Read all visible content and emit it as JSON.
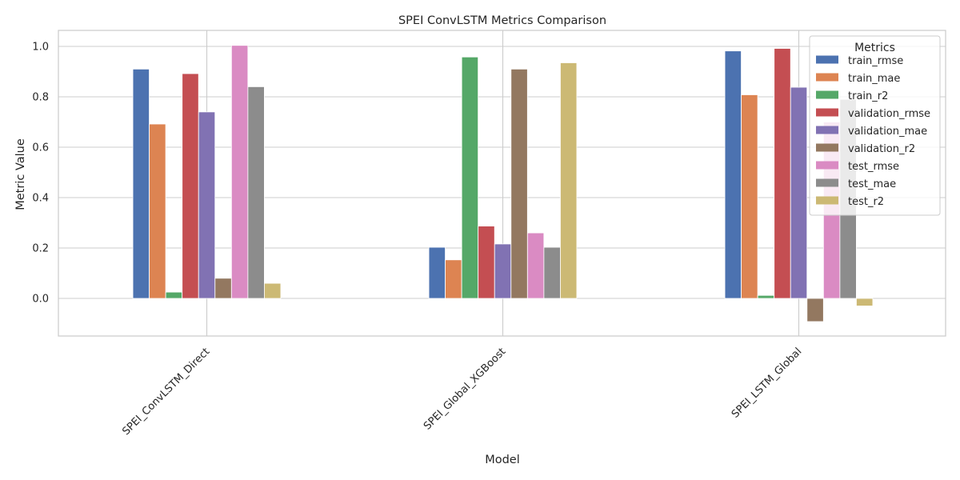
{
  "chart_data": {
    "type": "bar",
    "title": "SPEI ConvLSTM Metrics Comparison",
    "xlabel": "Model",
    "ylabel": "Metric Value",
    "categories": [
      "SPEI_ConvLSTM_Direct",
      "SPEI_Global_XGBoost",
      "SPEI_LSTM_Global"
    ],
    "ylim": [
      -0.15,
      1.06
    ],
    "yticks": [
      "0.0",
      "0.2",
      "0.4",
      "0.6",
      "0.8",
      "1.0"
    ],
    "grid": true,
    "legend": {
      "title": "Metrics",
      "placement": "top-right"
    },
    "series": [
      {
        "name": "train_rmse",
        "color": "#4c72b0",
        "values": [
          0.91,
          0.203,
          0.982
        ]
      },
      {
        "name": "train_mae",
        "color": "#dd8452",
        "values": [
          0.692,
          0.153,
          0.808
        ]
      },
      {
        "name": "train_r2",
        "color": "#55a868",
        "values": [
          0.025,
          0.958,
          0.012
        ]
      },
      {
        "name": "validation_rmse",
        "color": "#c44e52",
        "values": [
          0.892,
          0.287,
          0.992
        ]
      },
      {
        "name": "validation_mae",
        "color": "#8172b3",
        "values": [
          0.74,
          0.216,
          0.838
        ]
      },
      {
        "name": "validation_r2",
        "color": "#937860",
        "values": [
          0.08,
          0.91,
          -0.092
        ]
      },
      {
        "name": "test_rmse",
        "color": "#da8bc3",
        "values": [
          1.004,
          0.26,
          0.7
        ]
      },
      {
        "name": "test_mae",
        "color": "#8c8c8c",
        "values": [
          0.84,
          0.203,
          0.79
        ]
      },
      {
        "name": "test_r2",
        "color": "#ccb974",
        "values": [
          0.06,
          0.935,
          -0.03
        ]
      }
    ]
  }
}
